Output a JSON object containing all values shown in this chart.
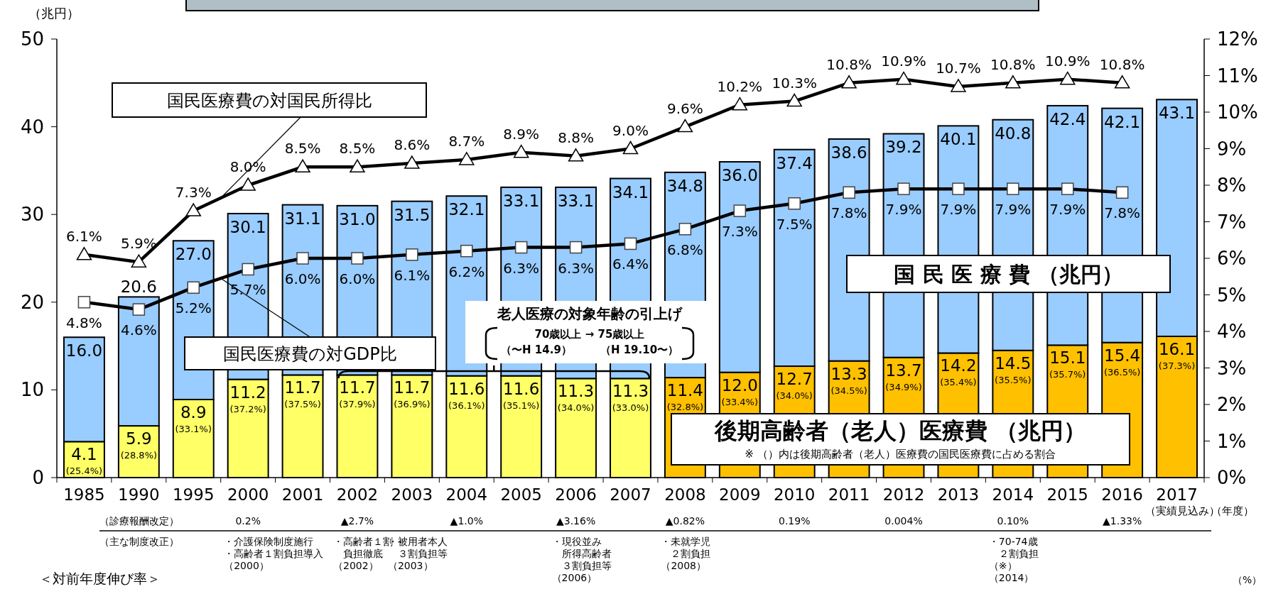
{
  "chart_data": {
    "type": "bar",
    "stacked": true,
    "categories": [
      "1985",
      "1990",
      "1995",
      "2000",
      "2001",
      "2002",
      "2003",
      "2004",
      "2005",
      "2006",
      "2007",
      "2008",
      "2009",
      "2010",
      "2011",
      "2012",
      "2013",
      "2014",
      "2015",
      "2016",
      "2017"
    ],
    "series": [
      {
        "name": "後期高齢者（老人）医療費 （兆円）",
        "type": "bar",
        "colors": [
          "#ffff66",
          "#ffff66",
          "#ffff66",
          "#ffff66",
          "#ffff66",
          "#ffff66",
          "#ffff66",
          "#ffff66",
          "#ffff66",
          "#ffff66",
          "#ffff66",
          "#ffc000",
          "#ffc000",
          "#ffc000",
          "#ffc000",
          "#ffc000",
          "#ffc000",
          "#ffc000",
          "#ffc000",
          "#ffc000",
          "#ffc000"
        ],
        "values": [
          4.1,
          5.9,
          8.9,
          11.2,
          11.7,
          11.7,
          11.7,
          11.6,
          11.6,
          11.3,
          11.3,
          11.4,
          12.0,
          12.7,
          13.3,
          13.7,
          14.2,
          14.5,
          15.1,
          15.4,
          16.1
        ],
        "value_labels": [
          "4.1\n(25.4%)",
          "5.9\n(28.8%)",
          "8.9\n(33.1%)",
          "11.2\n(37.2%)",
          "11.7\n(37.5%)",
          "11.7\n(37.9%)",
          "11.7\n(36.9%)",
          "11.6\n(36.1%)",
          "11.6\n(35.1%)",
          "11.3\n(34.0%)",
          "11.3\n(33.0%)",
          "11.4\n(32.8%)",
          "12.0\n(33.4%)",
          "12.7\n(34.0%)",
          "13.3\n(34.5%)",
          "13.7\n(34.9%)",
          "14.2\n(35.4%)",
          "14.5\n(35.5%)",
          "15.1\n(35.7%)",
          "15.4\n(36.5%)",
          "16.1\n(37.3%)"
        ]
      },
      {
        "name": "国 民 医 療 費 （兆円）",
        "type": "bar",
        "color": "#99ccff",
        "values": [
          11.9,
          14.7,
          18.1,
          18.9,
          19.4,
          19.3,
          19.8,
          20.5,
          21.5,
          21.8,
          22.8,
          23.4,
          24.0,
          24.7,
          25.3,
          25.5,
          25.9,
          26.3,
          27.3,
          26.7,
          27.0
        ]
      },
      {
        "name": "国民医療費の対国民所得比",
        "type": "line",
        "axis": "y2",
        "color": "#000000",
        "marker": "triangle",
        "values": [
          6.1,
          5.9,
          7.3,
          8.0,
          8.5,
          8.5,
          8.6,
          8.7,
          8.9,
          8.8,
          9.0,
          9.6,
          10.2,
          10.3,
          10.8,
          10.9,
          10.7,
          10.8,
          10.9,
          10.8,
          null
        ],
        "value_labels": [
          "6.1%",
          "5.9%",
          "7.3%",
          "8.0%",
          "8.5%",
          "8.5%",
          "8.6%",
          "8.7%",
          "8.9%",
          "8.8%",
          "9.0%",
          "9.6%",
          "10.2%",
          "10.3%",
          "10.8%",
          "10.9%",
          "10.7%",
          "10.8%",
          "10.9%",
          "10.8%",
          null
        ]
      },
      {
        "name": "国民医療費の対GDP比",
        "type": "line",
        "axis": "y2",
        "color": "#000000",
        "marker": "square",
        "values": [
          4.8,
          4.6,
          5.2,
          5.7,
          6.0,
          6.0,
          6.1,
          6.2,
          6.3,
          6.3,
          6.4,
          6.8,
          7.3,
          7.5,
          7.8,
          7.9,
          7.9,
          7.9,
          7.9,
          7.8,
          null
        ],
        "value_labels": [
          "4.8%",
          "4.6%",
          "5.2%",
          "5.7%",
          "6.0%",
          "6.0%",
          "6.1%",
          "6.2%",
          "6.3%",
          "6.3%",
          "6.4%",
          "6.8%",
          "7.3%",
          "7.5%",
          "7.8%",
          "7.9%",
          "7.9%",
          "7.9%",
          "7.9%",
          "7.8%",
          null
        ]
      }
    ],
    "totals": [
      "16.0",
      "20.6",
      "27.0",
      "30.1",
      "31.1",
      "31.0",
      "31.5",
      "32.1",
      "33.1",
      "33.1",
      "34.1",
      "34.8",
      "36.0",
      "37.4",
      "38.6",
      "39.2",
      "40.1",
      "40.8",
      "42.4",
      "42.1",
      "43.1"
    ],
    "ylabel": "（兆円）",
    "xlabel": "（年度）",
    "ylim": [
      0,
      50
    ],
    "yticks": [
      0,
      10,
      20,
      30,
      40,
      50
    ],
    "y2lim": [
      0,
      12
    ],
    "y2ticks": [
      {
        "value": 0,
        "label": "0%"
      },
      {
        "value": 1,
        "label": "1%"
      },
      {
        "value": 2,
        "label": "2%"
      },
      {
        "value": 3,
        "label": "3%"
      },
      {
        "value": 4,
        "label": "4%"
      },
      {
        "value": 5,
        "label": "5%"
      },
      {
        "value": 6,
        "label": "6%"
      },
      {
        "value": 7,
        "label": "7%"
      },
      {
        "value": 8,
        "label": "8%"
      },
      {
        "value": 9,
        "label": "9%"
      },
      {
        "value": 10,
        "label": "10%"
      },
      {
        "value": 11,
        "label": "11%"
      },
      {
        "value": 12,
        "label": "12%"
      }
    ],
    "annotations": [
      "老人医療の対象年齢の引上げ",
      "70歳以上 → 75歳以上",
      "（〜H 14.9）",
      "（H 19.10〜）",
      "※ （）内は後期高齢者（老人）医療費の国民医療費に占める割合",
      "（実績見込み）",
      "（診療報酬改定）",
      "（主な制度改正）",
      "0.2%",
      "▲2.7%",
      "▲1.0%",
      "▲3.16%",
      "▲0.82%",
      "0.19%",
      "0.004%",
      "0.10%",
      "▲1.33%",
      "・介護保険制度施行",
      "・高齢者１割負担導入",
      "（2000）",
      "・高齢者１割負担徹底",
      "（2002）",
      "・被用者本人３割負担等",
      "（2003）",
      "・現役並み所得高齢者３割負担等",
      "（2006）",
      "・未就学児２割負担",
      "（2008）",
      "・70-74歳２割負担",
      "（※）",
      "（2014）",
      "＜対前年度伸び率＞",
      "（%）"
    ]
  }
}
